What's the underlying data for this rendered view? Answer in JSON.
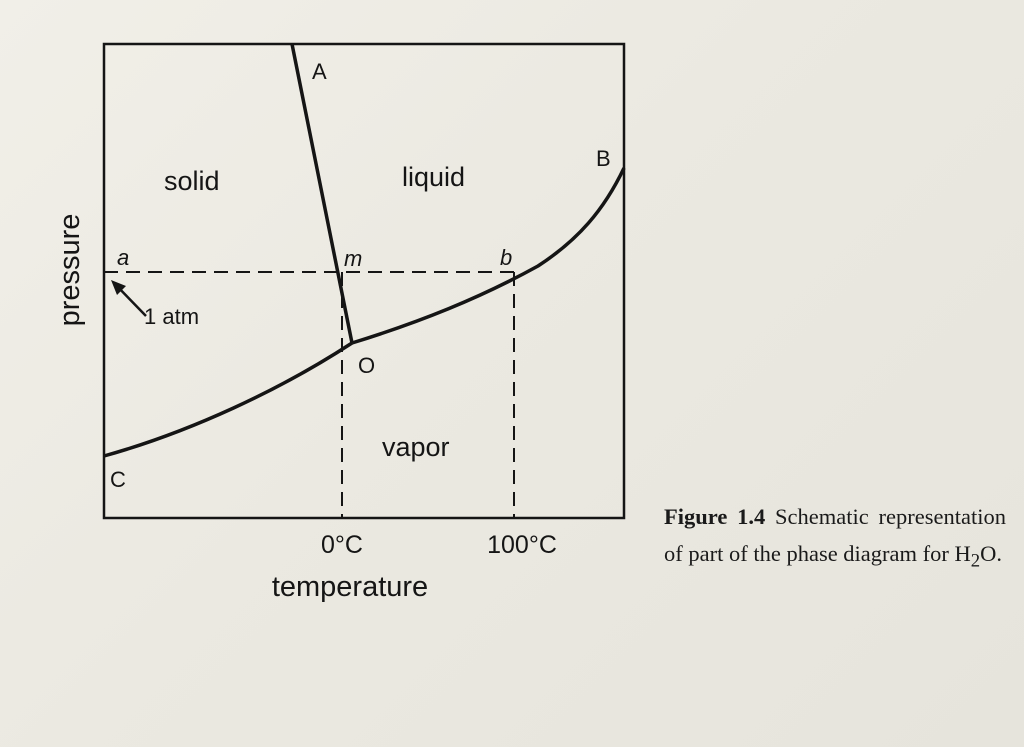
{
  "diagram": {
    "regions": {
      "solid": "solid",
      "liquid": "liquid",
      "vapor": "vapor"
    },
    "points": {
      "A": "A",
      "B": "B",
      "C": "C",
      "O": "O",
      "a": "a",
      "b": "b",
      "m": "m"
    },
    "pressure_marker": "1 atm",
    "x_ticks": [
      "0°C",
      "100°C"
    ],
    "x_axis_label": "temperature",
    "y_axis_label": "pressure"
  },
  "caption": {
    "label": "Figure 1.4",
    "text_before": "Schematic representation of part of the phase diagram for H",
    "subscript": "2",
    "text_after": "O."
  }
}
